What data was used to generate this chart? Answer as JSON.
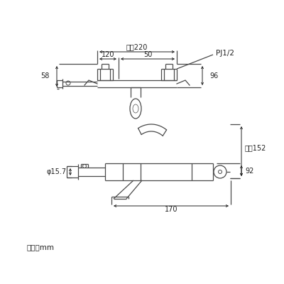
{
  "bg_color": "#ffffff",
  "line_color": "#4a4a4a",
  "text_color": "#222222",
  "fig_width": 4.0,
  "fig_height": 4.0,
  "dpi": 100,
  "unit_label": "単位：mm",
  "label_saidai220": "最大220",
  "label_120": "120",
  "label_50": "50",
  "label_58": "58",
  "label_96": "96",
  "label_pj": "PJ1/2",
  "label_phi": "φ15.7",
  "label_saidai152": "最大152",
  "label_170": "170",
  "label_92": "92"
}
